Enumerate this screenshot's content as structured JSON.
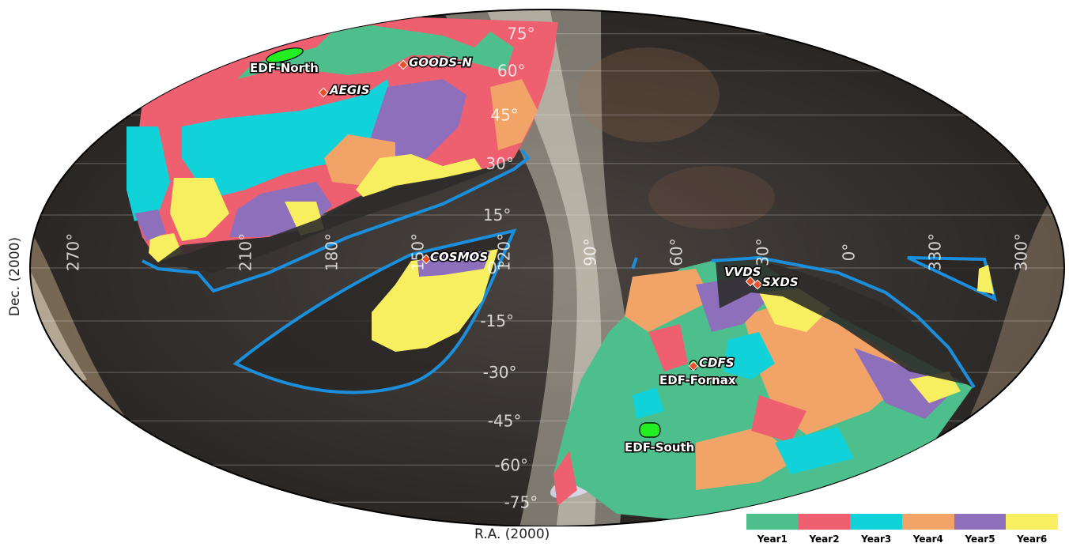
{
  "axes": {
    "xlabel": "R.A. (2000)",
    "ylabel": "Dec. (2000)",
    "projection": "mollweide",
    "ra_ticks": [
      {
        "value": 270,
        "label": "270°"
      },
      {
        "value": 210,
        "label": "210°"
      },
      {
        "value": 180,
        "label": "180°"
      },
      {
        "value": 150,
        "label": "150°"
      },
      {
        "value": 120,
        "label": "120°"
      },
      {
        "value": 90,
        "label": "90°"
      },
      {
        "value": 60,
        "label": "60°"
      },
      {
        "value": 30,
        "label": "30°"
      },
      {
        "value": 0,
        "label": "0°"
      },
      {
        "value": 330,
        "label": "330°"
      },
      {
        "value": 300,
        "label": "300°"
      }
    ],
    "dec_ticks": [
      {
        "value": 75,
        "label": "75°"
      },
      {
        "value": 60,
        "label": "60°"
      },
      {
        "value": 45,
        "label": "45°"
      },
      {
        "value": 30,
        "label": "30°"
      },
      {
        "value": 15,
        "label": "15°"
      },
      {
        "value": 0,
        "label": "0°"
      },
      {
        "value": -15,
        "label": "-15°"
      },
      {
        "value": -30,
        "label": "-30°"
      },
      {
        "value": -45,
        "label": "-45°"
      },
      {
        "value": -60,
        "label": "-60°"
      },
      {
        "value": -75,
        "label": "-75°"
      }
    ]
  },
  "legend": {
    "items": [
      {
        "label": "Year1",
        "color": "#4dbf8c"
      },
      {
        "label": "Year2",
        "color": "#ee6070"
      },
      {
        "label": "Year3",
        "color": "#10d2d8"
      },
      {
        "label": "Year4",
        "color": "#f2a468"
      },
      {
        "label": "Year5",
        "color": "#8e6fbc"
      },
      {
        "label": "Year6",
        "color": "#f8ef60"
      }
    ]
  },
  "fields": [
    {
      "name": "EDF-North",
      "type": "deep-field"
    },
    {
      "name": "GOODS-N",
      "type": "reference"
    },
    {
      "name": "AEGIS",
      "type": "reference"
    },
    {
      "name": "COSMOS",
      "type": "reference"
    },
    {
      "name": "VVDS",
      "type": "reference"
    },
    {
      "name": "SXDS",
      "type": "reference"
    },
    {
      "name": "CDFS",
      "type": "reference"
    },
    {
      "name": "EDF-Fornax",
      "type": "deep-field"
    },
    {
      "name": "EDF-South",
      "type": "deep-field"
    }
  ],
  "colors": {
    "survey_outline": "#1b8fdc",
    "deep_field": "#22ee22",
    "reference_marker": "#e8502a",
    "sky_background": "#3a3632"
  }
}
